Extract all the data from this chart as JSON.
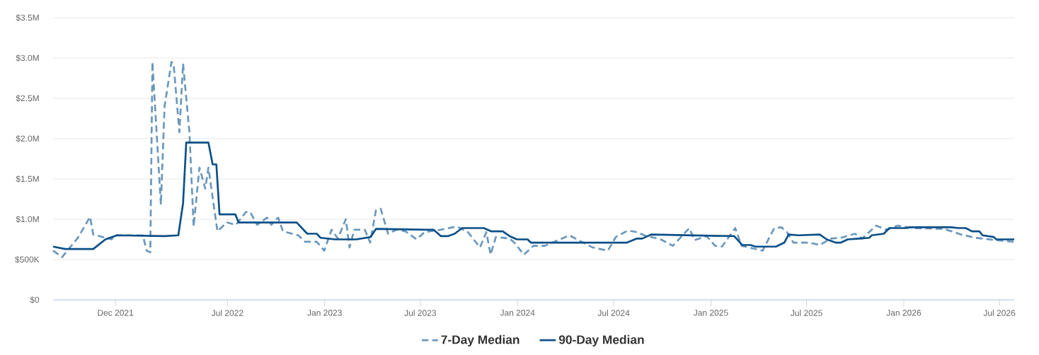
{
  "chart_data": {
    "type": "line",
    "xlim": [
      "2021-08-05",
      "2026-07-29"
    ],
    "xticks": [
      {
        "value": "2021-12-01",
        "label": "Dec 2021"
      },
      {
        "value": "2022-07-01",
        "label": "Jul 2022"
      },
      {
        "value": "2023-01-01",
        "label": "Jan 2023"
      },
      {
        "value": "2023-07-01",
        "label": "Jul 2023"
      },
      {
        "value": "2024-01-01",
        "label": "Jan 2024"
      },
      {
        "value": "2024-07-01",
        "label": "Jul 2024"
      },
      {
        "value": "2025-01-01",
        "label": "Jan 2025"
      },
      {
        "value": "2025-07-01",
        "label": "Jul 2025"
      },
      {
        "value": "2026-01-01",
        "label": "Jan 2026"
      },
      {
        "value": "2026-07-01",
        "label": "Jul 2026"
      }
    ],
    "ylim": [
      0,
      3500000
    ],
    "yticks": [
      {
        "value": 0,
        "label": "$0"
      },
      {
        "value": 500000,
        "label": "$500K"
      },
      {
        "value": 1000000,
        "label": "$1.0M"
      },
      {
        "value": 1500000,
        "label": "$1.5M"
      },
      {
        "value": 2000000,
        "label": "$2.0M"
      },
      {
        "value": 2500000,
        "label": "$2.5M"
      },
      {
        "value": 3000000,
        "label": "$3.0M"
      },
      {
        "value": 3500000,
        "label": "$3.5M"
      }
    ],
    "grid": "y",
    "legend": "bottom",
    "marker": "none",
    "series": [
      {
        "name": "7-Day Median",
        "color": "#6a97bd",
        "line_style": "dashed",
        "x": [
          "2021-08-05",
          "2021-08-22",
          "2021-09-21",
          "2021-10-14",
          "2021-10-20",
          "2021-11-24",
          "2021-11-28",
          "2022-01-22",
          "2022-01-29",
          "2022-02-05",
          "2022-02-09",
          "2022-02-25",
          "2022-03-04",
          "2022-03-17",
          "2022-03-21",
          "2022-04-01",
          "2022-04-08",
          "2022-04-20",
          "2022-04-28",
          "2022-05-09",
          "2022-05-20",
          "2022-05-26",
          "2022-06-12",
          "2022-06-30",
          "2022-07-17",
          "2022-08-05",
          "2022-08-13",
          "2022-08-26",
          "2022-09-14",
          "2022-09-22",
          "2022-10-05",
          "2022-10-14",
          "2022-11-12",
          "2022-11-25",
          "2022-12-17",
          "2022-12-31",
          "2023-01-14",
          "2023-01-26",
          "2023-02-10",
          "2023-02-17",
          "2023-02-26",
          "2023-03-18",
          "2023-03-28",
          "2023-04-08",
          "2023-04-17",
          "2023-05-01",
          "2023-05-17",
          "2023-06-03",
          "2023-06-24",
          "2023-07-09",
          "2023-08-09",
          "2023-09-08",
          "2023-09-29",
          "2023-10-22",
          "2023-11-03",
          "2023-11-11",
          "2023-11-21",
          "2023-12-17",
          "2023-12-26",
          "2024-01-13",
          "2024-01-31",
          "2024-02-22",
          "2024-04-08",
          "2024-05-22",
          "2024-06-20",
          "2024-07-05",
          "2024-07-28",
          "2024-08-14",
          "2024-08-28",
          "2024-09-28",
          "2024-10-21",
          "2024-11-21",
          "2024-12-01",
          "2024-12-24",
          "2025-01-09",
          "2025-01-22",
          "2025-02-16",
          "2025-02-28",
          "2025-04-09",
          "2025-04-22",
          "2025-05-01",
          "2025-05-14",
          "2025-05-24",
          "2025-06-06",
          "2025-07-06",
          "2025-07-26",
          "2025-08-16",
          "2025-09-04",
          "2025-10-01",
          "2025-10-14",
          "2025-11-10",
          "2025-11-28",
          "2025-12-21",
          "2026-01-20",
          "2026-03-18",
          "2026-04-20",
          "2026-05-16",
          "2026-06-25",
          "2026-07-29"
        ],
        "values": [
          610000,
          530000,
          770000,
          1030000,
          810000,
          750000,
          800000,
          800000,
          610000,
          590000,
          2950000,
          1180000,
          2400000,
          2950000,
          2930000,
          2080000,
          2930000,
          2080000,
          910000,
          1640000,
          1380000,
          1640000,
          850000,
          960000,
          930000,
          1090000,
          1090000,
          930000,
          1020000,
          930000,
          1020000,
          850000,
          800000,
          720000,
          720000,
          610000,
          870000,
          760000,
          1000000,
          650000,
          870000,
          870000,
          710000,
          1110000,
          1130000,
          820000,
          870000,
          850000,
          750000,
          840000,
          870000,
          910000,
          840000,
          650000,
          840000,
          560000,
          780000,
          760000,
          710000,
          560000,
          670000,
          670000,
          800000,
          650000,
          610000,
          780000,
          860000,
          840000,
          800000,
          750000,
          670000,
          890000,
          740000,
          790000,
          670000,
          660000,
          890000,
          670000,
          610000,
          780000,
          890000,
          900000,
          850000,
          710000,
          710000,
          680000,
          760000,
          770000,
          820000,
          760000,
          920000,
          870000,
          920000,
          890000,
          880000,
          810000,
          770000,
          740000,
          720000
        ]
      },
      {
        "name": "90-Day Median",
        "color": "#0b4f87",
        "line_style": "solid",
        "x": [
          "2021-08-05",
          "2021-08-28",
          "2021-10-20",
          "2021-11-12",
          "2021-12-04",
          "2022-03-04",
          "2022-03-30",
          "2022-04-08",
          "2022-04-14",
          "2022-05-26",
          "2022-06-03",
          "2022-06-10",
          "2022-06-16",
          "2022-07-16",
          "2022-07-22",
          "2022-11-09",
          "2022-11-29",
          "2022-12-17",
          "2022-12-24",
          "2023-01-21",
          "2023-03-02",
          "2023-03-29",
          "2023-04-08",
          "2023-07-13",
          "2023-07-26",
          "2023-08-09",
          "2023-08-22",
          "2023-09-04",
          "2023-09-18",
          "2023-10-29",
          "2023-11-12",
          "2023-12-04",
          "2023-12-17",
          "2023-12-31",
          "2024-01-20",
          "2024-01-26",
          "2024-07-26",
          "2024-08-14",
          "2024-08-24",
          "2024-09-10",
          "2025-02-14",
          "2025-03-01",
          "2025-03-17",
          "2025-03-26",
          "2025-05-04",
          "2025-05-20",
          "2025-05-28",
          "2025-06-16",
          "2025-07-26",
          "2025-08-08",
          "2025-08-25",
          "2025-09-04",
          "2025-09-17",
          "2025-10-09",
          "2025-10-28",
          "2025-11-01",
          "2025-11-24",
          "2025-12-05",
          "2026-01-06",
          "2026-01-13",
          "2026-04-01",
          "2026-04-14",
          "2026-04-28",
          "2026-05-10",
          "2026-05-24",
          "2026-05-30",
          "2026-06-20",
          "2026-06-25",
          "2026-07-29"
        ],
        "values": [
          660000,
          630000,
          630000,
          750000,
          800000,
          790000,
          800000,
          1200000,
          1950000,
          1950000,
          1680000,
          1680000,
          1060000,
          1060000,
          960000,
          960000,
          820000,
          820000,
          770000,
          750000,
          750000,
          780000,
          880000,
          870000,
          870000,
          790000,
          790000,
          820000,
          890000,
          890000,
          850000,
          850000,
          790000,
          750000,
          750000,
          710000,
          710000,
          760000,
          760000,
          810000,
          790000,
          680000,
          680000,
          660000,
          660000,
          710000,
          810000,
          800000,
          810000,
          750000,
          710000,
          710000,
          750000,
          760000,
          770000,
          800000,
          820000,
          890000,
          890000,
          900000,
          900000,
          890000,
          890000,
          850000,
          850000,
          800000,
          780000,
          750000,
          750000
        ]
      }
    ]
  }
}
